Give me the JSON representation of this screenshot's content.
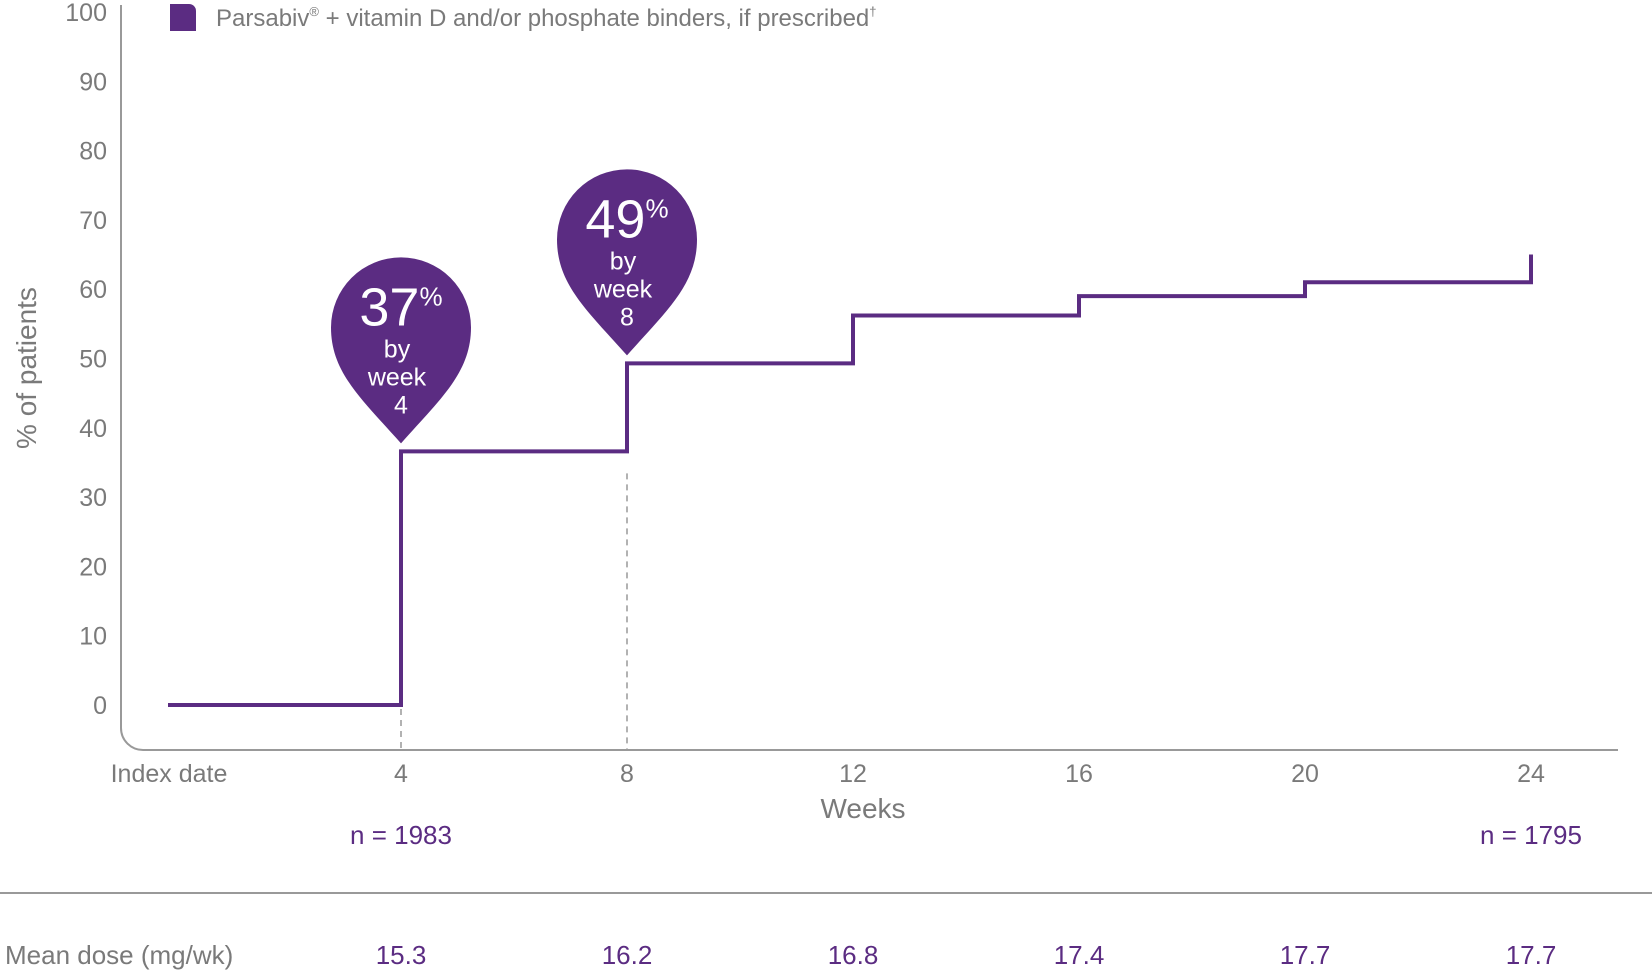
{
  "chart_data": {
    "type": "line",
    "step": true,
    "legend": {
      "label": "Parsabiv",
      "reg": "®",
      "rest": " + vitamin D and/or phosphate binders, if prescribed",
      "dagger": "†",
      "color": "#5b2c82",
      "placement": "top-left"
    },
    "ylabel": "% of patients",
    "xlabel": "Weeks",
    "ylim": [
      0,
      100
    ],
    "yticks": [
      0,
      10,
      20,
      30,
      40,
      50,
      60,
      70,
      80,
      90,
      100
    ],
    "xticks": [
      {
        "value": 0,
        "label": "Index date"
      },
      {
        "value": 4,
        "label": "4"
      },
      {
        "value": 8,
        "label": "8"
      },
      {
        "value": 12,
        "label": "12"
      },
      {
        "value": 16,
        "label": "16"
      },
      {
        "value": 20,
        "label": "20"
      },
      {
        "value": 24,
        "label": "24"
      }
    ],
    "series": [
      {
        "x": [
          0,
          4,
          8,
          12,
          16,
          20,
          24
        ],
        "y": [
          0,
          36.6,
          49.3,
          56.2,
          59.0,
          61.0,
          65.0
        ],
        "color": "#5b2c82"
      }
    ],
    "callouts": [
      {
        "week": 4,
        "value": "37",
        "unit": "%",
        "line1": "by",
        "line2": "week",
        "line3": "4"
      },
      {
        "week": 8,
        "value": "49",
        "unit": "%",
        "line1": "by",
        "line2": "week",
        "line3": "8"
      }
    ],
    "n_labels": [
      {
        "week": 4,
        "text": "n = 1983"
      },
      {
        "week": 24,
        "text": "n = 1795"
      }
    ],
    "mean_dose": {
      "label": "Mean dose (mg/wk)",
      "values": [
        {
          "week": 4,
          "text": "15.3"
        },
        {
          "week": 8,
          "text": "16.2"
        },
        {
          "week": 12,
          "text": "16.8"
        },
        {
          "week": 16,
          "text": "17.4"
        },
        {
          "week": 20,
          "text": "17.7"
        },
        {
          "week": 24,
          "text": "17.7"
        }
      ]
    }
  }
}
